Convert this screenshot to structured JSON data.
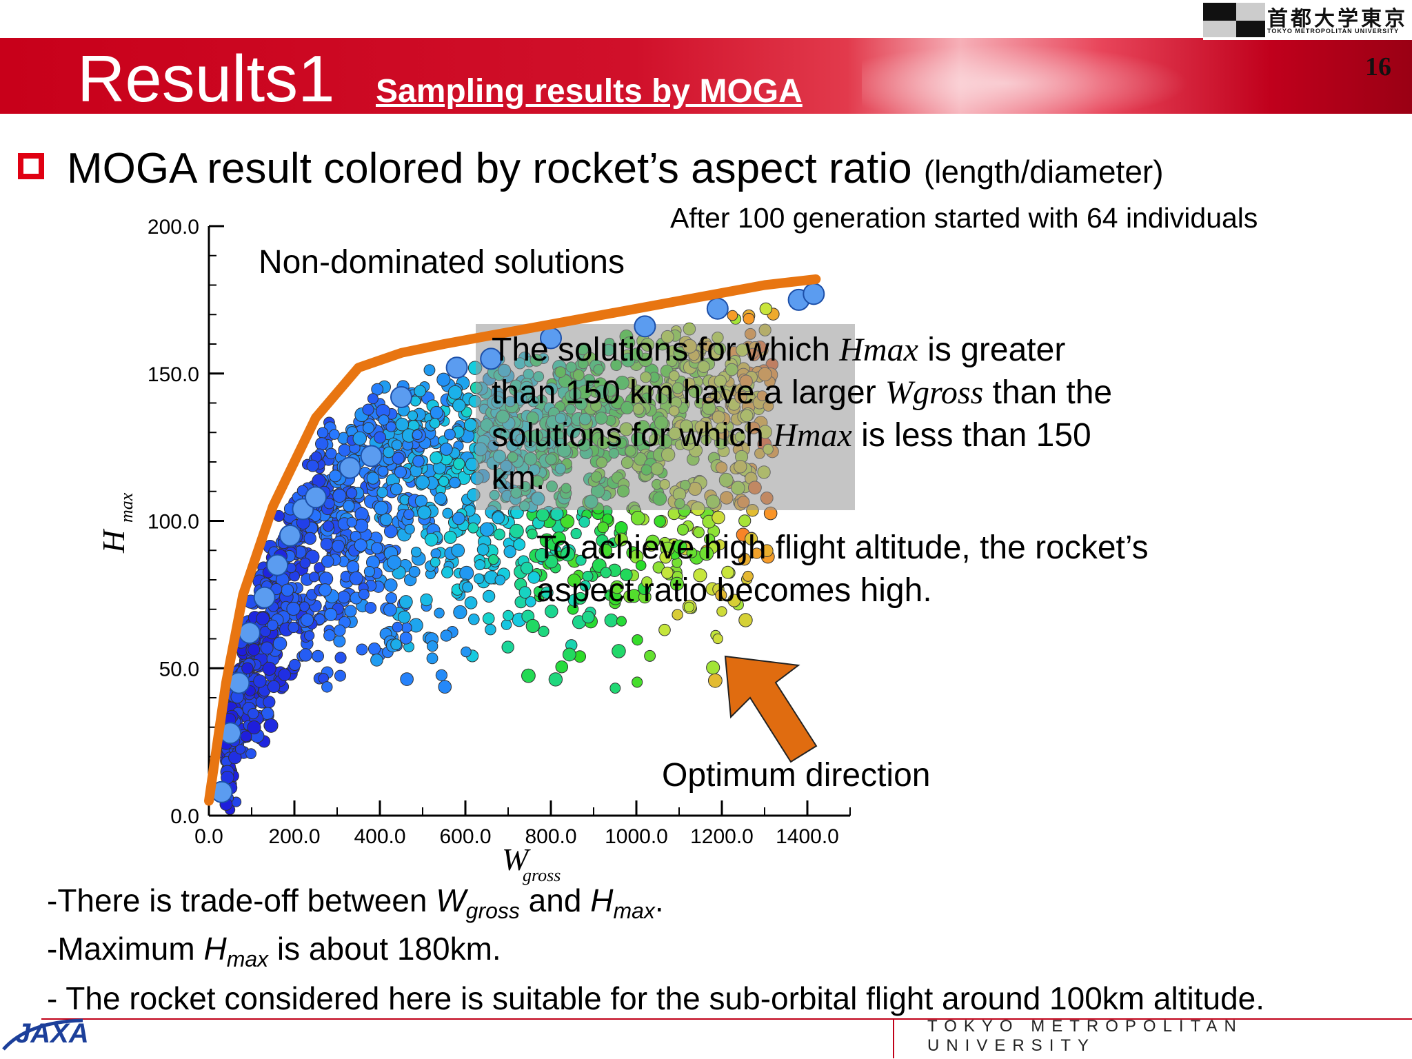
{
  "header": {
    "title": "Results1",
    "subtitle": "Sampling results by MOGA",
    "page_number": "16"
  },
  "logos": {
    "university_jp": "首都大学東京",
    "university_en": "TOKYO METROPOLITAN UNIVERSITY",
    "agency": "JAXA"
  },
  "bullet": {
    "main": "MOGA result colored by rocket’s aspect ratio",
    "sub": "(length/diameter)"
  },
  "generation_note": "After 100 generation started with 64 individuals",
  "annotations": {
    "non_dominated": "Non-dominated solutions",
    "solutions_line1_a": "The solutions for which ",
    "solutions_hmax": "Hmax",
    "solutions_line1_b": " is greater",
    "solutions_line2_a": "than 150 km have a larger ",
    "solutions_wgross": "Wgross",
    "solutions_line2_b": " than the",
    "solutions_line3_a": "solutions for which ",
    "solutions_line3_b": " is less than 150",
    "solutions_line4": "km.",
    "aspect_line1": "To achieve high flight altitude, the rocket’s",
    "aspect_line2": "aspect ratio becomes high.",
    "optimum": "Optimum direction"
  },
  "notes": {
    "line1_a": "-There is trade-off between ",
    "line1_W": "W",
    "line1_gross": "gross",
    "line1_and": " and ",
    "line1_H": "H",
    "line1_max": "max",
    "line1_end": ".",
    "line2_a": "-Maximum ",
    "line2_H": "H",
    "line2_max": "max",
    "line2_b": " is about 180km.",
    "line3": "- The rocket considered here is suitable for the sub-orbital flight around 100km altitude."
  },
  "colors": {
    "header_red": "#c8001a",
    "bullet_red": "#e00012",
    "front_orange": "#e87511",
    "arrow_orange": "#e06c10"
  },
  "chart_data": {
    "type": "scatter",
    "xlabel": "W",
    "xlabel_sub": "gross",
    "ylabel": "H",
    "ylabel_sub": "max",
    "xlim": [
      0,
      1500
    ],
    "ylim": [
      0,
      200
    ],
    "x_ticks": [
      "0.0",
      "200.0",
      "400.0",
      "600.0",
      "800.0",
      "1000.0",
      "1200.0",
      "1400.0"
    ],
    "y_ticks": [
      "0.0",
      "50.0",
      "100.0",
      "150.0",
      "200.0"
    ],
    "color_meaning": "aspect ratio (length/diameter), blue = low, red = high",
    "pareto_front": {
      "x": [
        0,
        40,
        80,
        150,
        250,
        350,
        450,
        550,
        700,
        850,
        1000,
        1150,
        1300,
        1420
      ],
      "y": [
        5,
        45,
        75,
        105,
        135,
        152,
        157,
        160,
        164,
        168,
        172,
        176,
        180,
        182
      ]
    },
    "front_points": {
      "x": [
        30,
        50,
        70,
        95,
        130,
        160,
        190,
        220,
        250,
        330,
        380,
        450,
        580,
        660,
        800,
        1020,
        1190,
        1380,
        1415
      ],
      "y": [
        8,
        28,
        45,
        62,
        74,
        85,
        95,
        104,
        108,
        118,
        122,
        142,
        152,
        155,
        162,
        166,
        172,
        175,
        177
      ]
    }
  }
}
